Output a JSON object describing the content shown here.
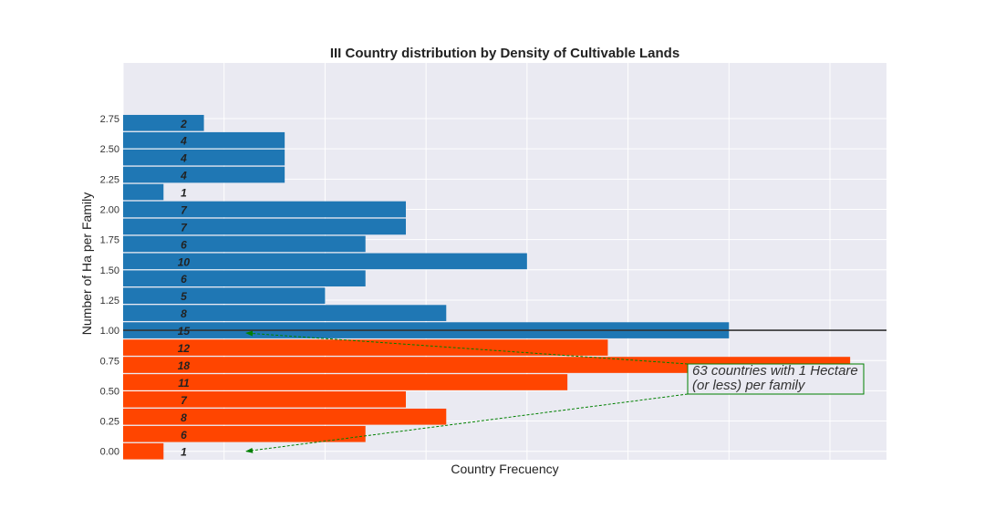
{
  "chart_data": {
    "type": "bar",
    "orientation": "horizontal",
    "title": "III Country distribution by Density of Cultivable Lands",
    "xlabel": "Country Frecuency",
    "ylabel": "Number of Ha per Family",
    "xlim": [
      0,
      18.9
    ],
    "ylim": [
      -0.07,
      3.21
    ],
    "yticks": [
      0.0,
      0.25,
      0.5,
      0.75,
      1.0,
      1.25,
      1.5,
      1.75,
      2.0,
      2.25,
      2.5,
      2.75
    ],
    "ytick_labels": [
      "0.00",
      "0.25",
      "0.50",
      "0.75",
      "1.00",
      "1.25",
      "1.50",
      "1.75",
      "2.00",
      "2.25",
      "2.50",
      "2.75"
    ],
    "xticks": [
      0,
      2.5,
      5,
      7.5,
      10,
      12.5,
      15,
      17.5
    ],
    "bar_height": 0.133,
    "grid": true,
    "colors": {
      "low": "#ff4500",
      "high": "#1f77b4",
      "annotation": "#008000",
      "plot_bg": "#eaeaf2",
      "grid": "#ffffff"
    },
    "threshold_line_y": 1.0,
    "bars": [
      {
        "y": 0.0,
        "value": 1,
        "group": "low"
      },
      {
        "y": 0.143,
        "value": 6,
        "group": "low"
      },
      {
        "y": 0.286,
        "value": 8,
        "group": "low"
      },
      {
        "y": 0.429,
        "value": 7,
        "group": "low"
      },
      {
        "y": 0.571,
        "value": 11,
        "group": "low"
      },
      {
        "y": 0.714,
        "value": 18,
        "group": "low"
      },
      {
        "y": 0.857,
        "value": 12,
        "group": "low"
      },
      {
        "y": 1.0,
        "value": 15,
        "group": "high"
      },
      {
        "y": 1.143,
        "value": 8,
        "group": "high"
      },
      {
        "y": 1.286,
        "value": 5,
        "group": "high"
      },
      {
        "y": 1.429,
        "value": 6,
        "group": "high"
      },
      {
        "y": 1.571,
        "value": 10,
        "group": "high"
      },
      {
        "y": 1.714,
        "value": 6,
        "group": "high"
      },
      {
        "y": 1.857,
        "value": 7,
        "group": "high"
      },
      {
        "y": 2.0,
        "value": 7,
        "group": "high"
      },
      {
        "y": 2.143,
        "value": 1,
        "group": "high"
      },
      {
        "y": 2.286,
        "value": 4,
        "group": "high"
      },
      {
        "y": 2.429,
        "value": 4,
        "group": "high"
      },
      {
        "y": 2.571,
        "value": 4,
        "group": "high"
      },
      {
        "y": 2.714,
        "value": 2,
        "group": "high"
      }
    ],
    "annotation": {
      "lines": [
        "63 countries with 1 Hectare",
        "(or less) per family"
      ],
      "arrow_targets": [
        {
          "x": 3.05,
          "y": 1.0
        },
        {
          "x": 3.05,
          "y": 0.0
        }
      ]
    }
  }
}
